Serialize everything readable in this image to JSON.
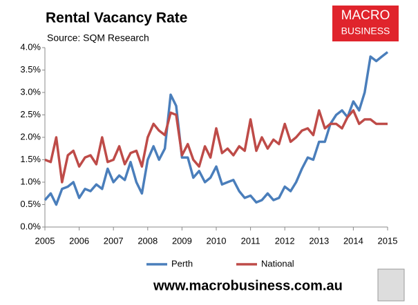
{
  "chart_data": {
    "type": "line",
    "title": "Rental Vacancy Rate",
    "subtitle": "Source: SQM Research",
    "x": [
      2005,
      2005.17,
      2005.33,
      2005.5,
      2005.67,
      2005.83,
      2006,
      2006.17,
      2006.33,
      2006.5,
      2006.67,
      2006.83,
      2007,
      2007.17,
      2007.33,
      2007.5,
      2007.67,
      2007.83,
      2008,
      2008.17,
      2008.33,
      2008.5,
      2008.67,
      2008.83,
      2009,
      2009.17,
      2009.33,
      2009.5,
      2009.67,
      2009.83,
      2010,
      2010.17,
      2010.33,
      2010.5,
      2010.67,
      2010.83,
      2011,
      2011.17,
      2011.33,
      2011.5,
      2011.67,
      2011.83,
      2012,
      2012.17,
      2012.33,
      2012.5,
      2012.67,
      2012.83,
      2013,
      2013.17,
      2013.33,
      2013.5,
      2013.67,
      2013.83,
      2014,
      2014.17,
      2014.33,
      2014.5,
      2014.67,
      2014.83,
      2015
    ],
    "series": [
      {
        "name": "Perth",
        "color": "#4a7ebb",
        "values": [
          0.6,
          0.75,
          0.5,
          0.85,
          0.9,
          1.0,
          0.65,
          0.85,
          0.8,
          0.95,
          0.85,
          1.3,
          1.0,
          1.15,
          1.05,
          1.45,
          1.0,
          0.75,
          1.5,
          1.8,
          1.5,
          1.75,
          2.95,
          2.7,
          1.55,
          1.55,
          1.1,
          1.25,
          1.0,
          1.1,
          1.35,
          0.95,
          1.0,
          1.05,
          0.8,
          0.65,
          0.7,
          0.55,
          0.6,
          0.75,
          0.6,
          0.65,
          0.9,
          0.8,
          1.0,
          1.3,
          1.55,
          1.5,
          1.9,
          1.9,
          2.3,
          2.5,
          2.6,
          2.45,
          2.8,
          2.6,
          3.0,
          3.8,
          3.7,
          3.8,
          3.9
        ]
      },
      {
        "name": "National",
        "color": "#be4b48",
        "values": [
          1.5,
          1.45,
          2.0,
          1.0,
          1.6,
          1.7,
          1.35,
          1.55,
          1.6,
          1.4,
          2.0,
          1.45,
          1.5,
          1.8,
          1.4,
          1.65,
          1.7,
          1.35,
          2.0,
          2.3,
          2.15,
          2.05,
          2.55,
          2.5,
          1.6,
          1.85,
          1.5,
          1.35,
          1.8,
          1.55,
          2.2,
          1.65,
          1.75,
          1.6,
          1.8,
          1.7,
          2.4,
          1.7,
          2.0,
          1.75,
          1.95,
          1.85,
          2.3,
          1.9,
          2.0,
          2.15,
          2.2,
          2.05,
          2.6,
          2.2,
          2.3,
          2.3,
          2.2,
          2.45,
          2.6,
          2.3,
          2.4,
          2.4,
          2.3,
          2.3,
          2.3
        ]
      }
    ],
    "xlim": [
      2005,
      2015
    ],
    "xticks": [
      2005,
      2006,
      2007,
      2008,
      2009,
      2010,
      2011,
      2012,
      2013,
      2014,
      2015
    ],
    "ylim": [
      0,
      4
    ],
    "yticks": [
      {
        "value": 0,
        "label": "0.0%"
      },
      {
        "value": 0.5,
        "label": "0.5%"
      },
      {
        "value": 1,
        "label": "1.0%"
      },
      {
        "value": 1.5,
        "label": "1.5%"
      },
      {
        "value": 2,
        "label": "2.0%"
      },
      {
        "value": 2.5,
        "label": "2.5%"
      },
      {
        "value": 3,
        "label": "3.0%"
      },
      {
        "value": 3.5,
        "label": "3.5%"
      },
      {
        "value": 4,
        "label": "4.0%"
      }
    ],
    "grid": false,
    "legend": "bottom"
  },
  "logo": {
    "line1": "MACRO",
    "line2": "BUSINESS"
  },
  "footer": "www.macrobusiness.com.au"
}
